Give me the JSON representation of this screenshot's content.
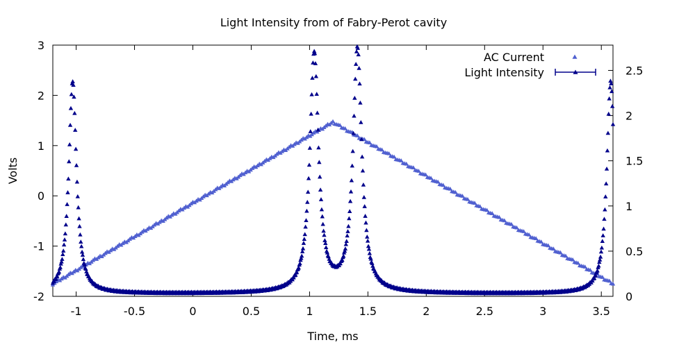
{
  "chart_data": {
    "type": "scatter",
    "title": "Light Intensity from of Fabry-Perot cavity",
    "xlabel": "Time, ms",
    "ylabel": "Volts",
    "y2label": "",
    "xlim": [
      -1.2,
      3.6
    ],
    "ylim": [
      -2,
      3
    ],
    "y2lim": [
      0,
      2.78
    ],
    "xticks": [
      -1,
      -0.5,
      0,
      0.5,
      1,
      1.5,
      2,
      2.5,
      3,
      3.5
    ],
    "yticks": [
      -2,
      -1,
      0,
      1,
      2,
      3
    ],
    "y2ticks": [
      0,
      0.5,
      1,
      1.5,
      2,
      2.5
    ],
    "grid": false,
    "legend_position": "top-right",
    "series": [
      {
        "name": "AC Current",
        "axis": "y",
        "marker": "triangle",
        "color": "#5060D0",
        "x": [
          -1.2,
          1.2,
          3.6
        ],
        "y": [
          -1.75,
          1.47,
          -1.75
        ]
      },
      {
        "name": "Light Intensity",
        "axis": "y2",
        "marker": "triangle",
        "error_bars": true,
        "color": "#00008B",
        "baseline": 0.03,
        "peaks": [
          {
            "center": -1.03,
            "height": 2.35,
            "width": 0.04
          },
          {
            "center": 1.04,
            "height": 2.65,
            "width": 0.045
          },
          {
            "center": 1.41,
            "height": 2.7,
            "width": 0.045
          },
          {
            "center": 3.58,
            "height": 2.35,
            "width": 0.04
          }
        ]
      }
    ]
  }
}
